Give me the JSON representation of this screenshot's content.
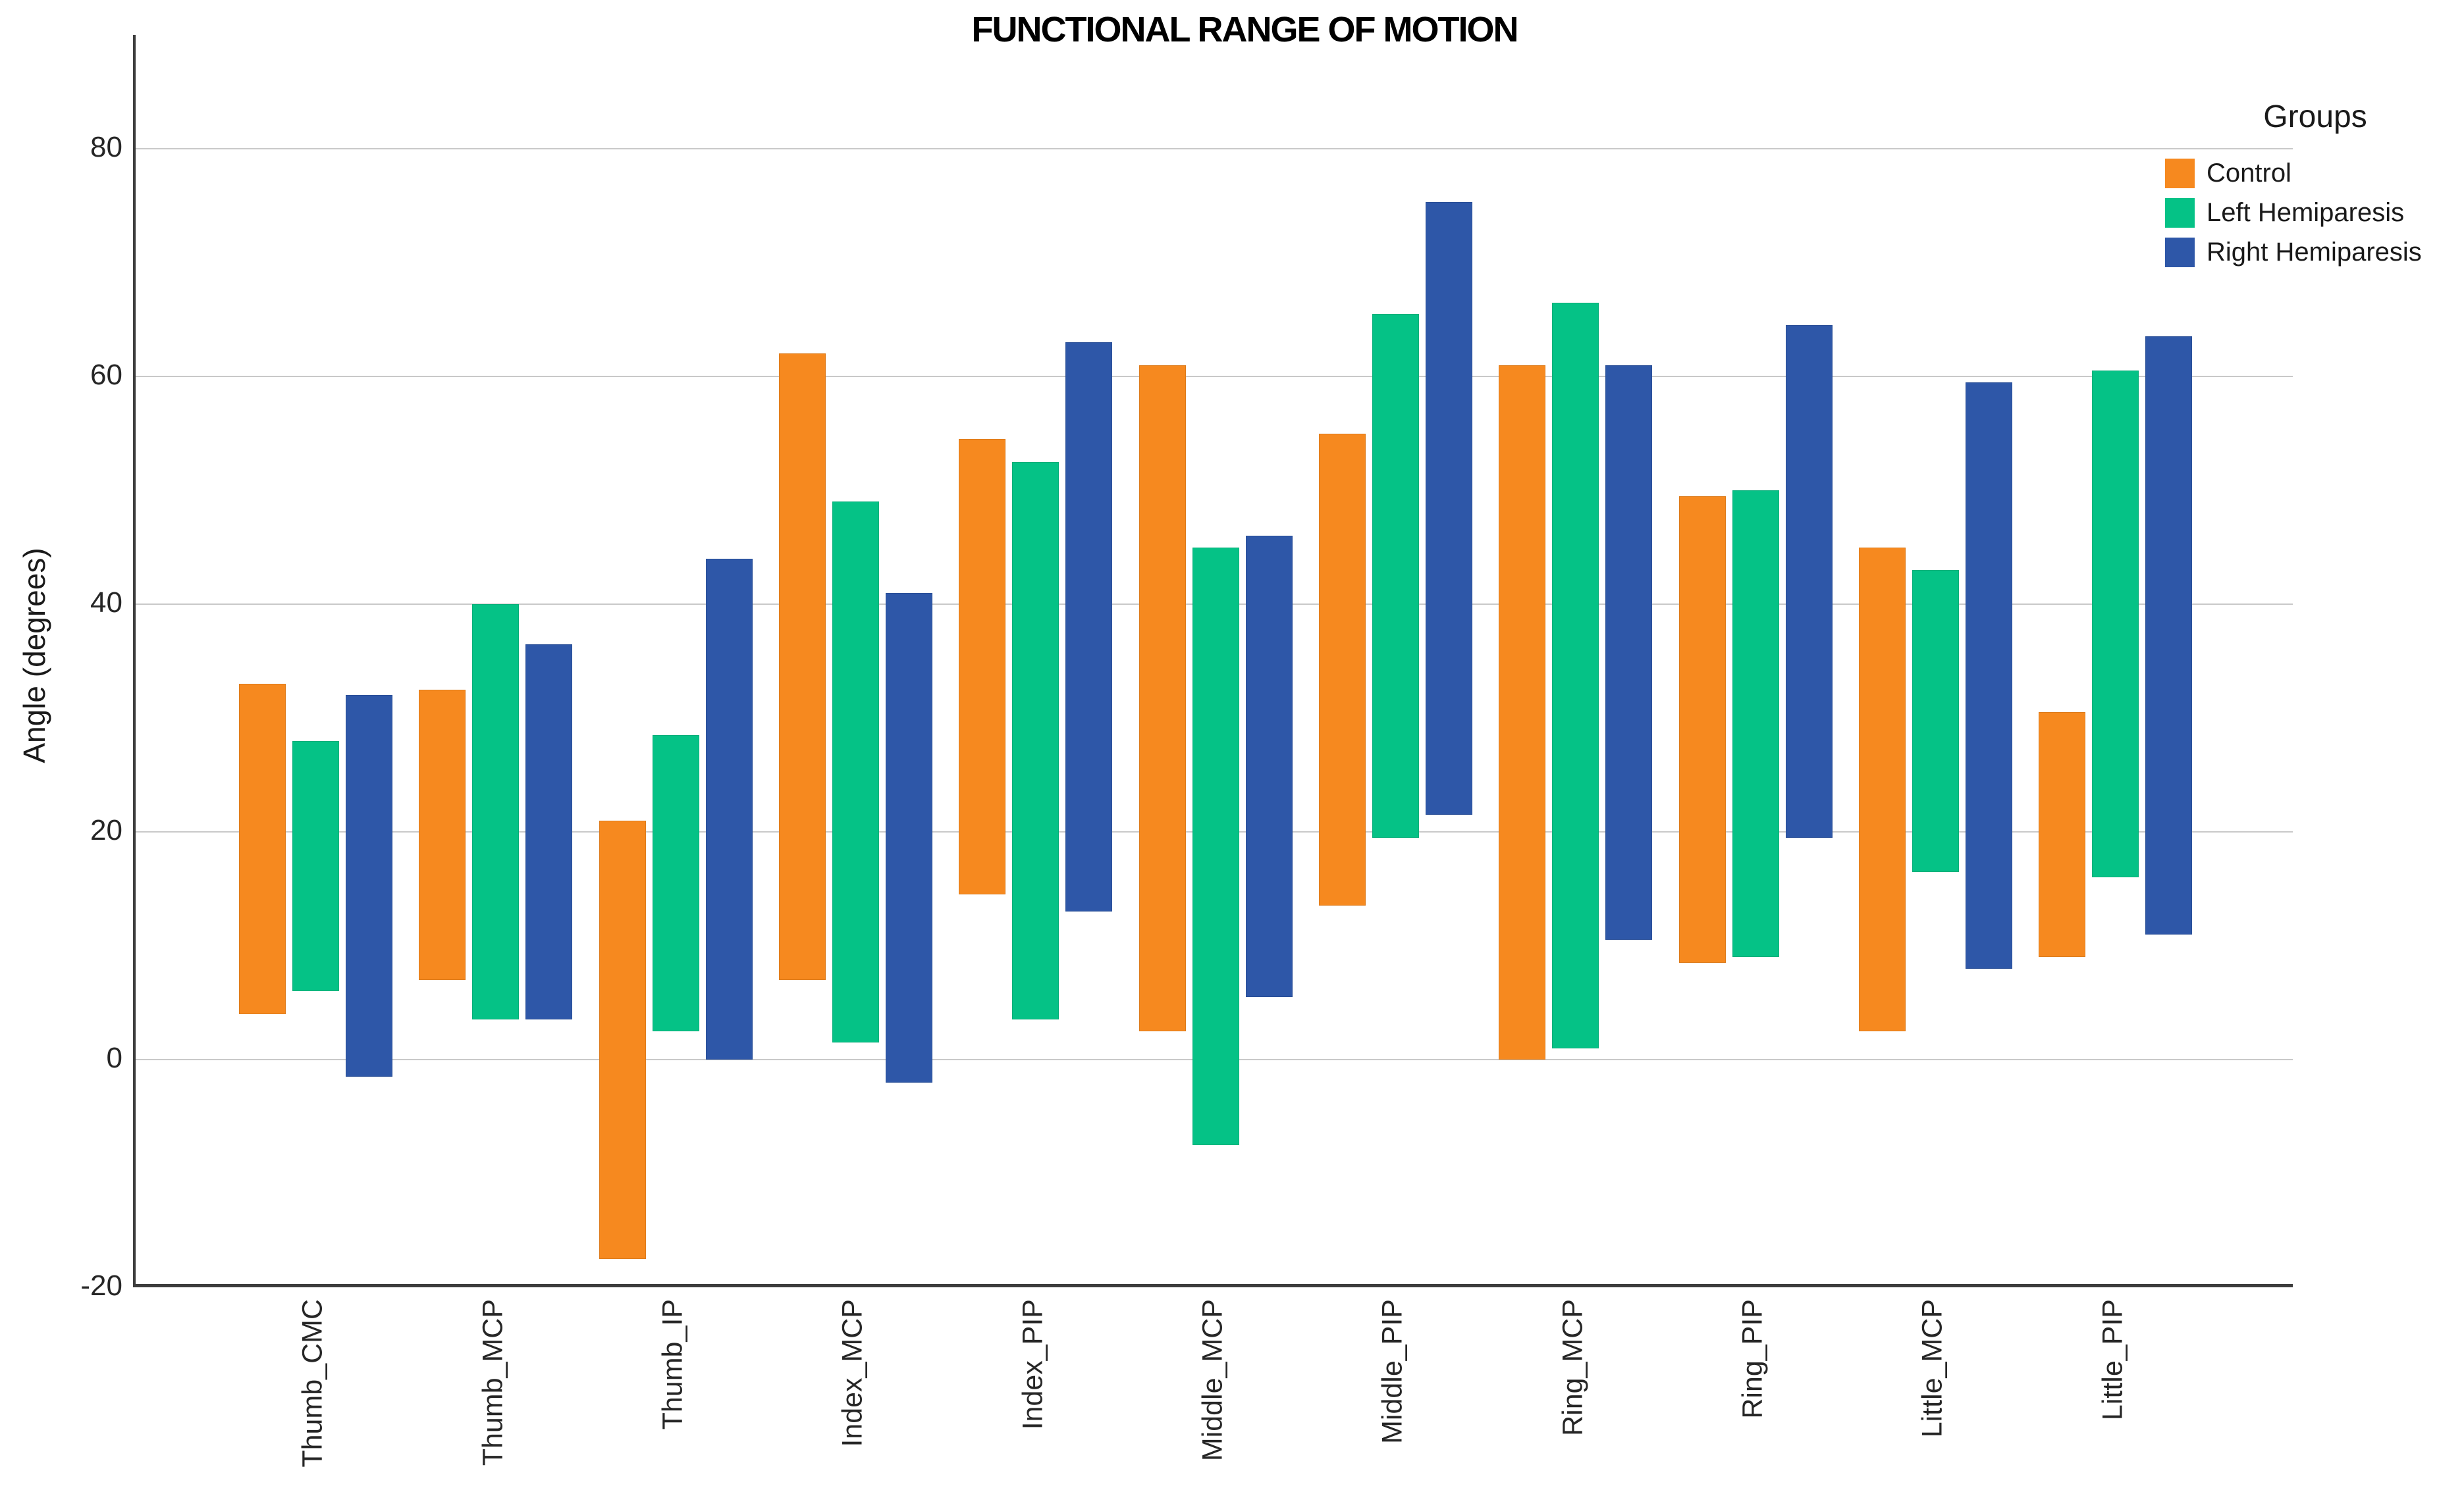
{
  "title": "FUNCTIONAL RANGE OF MOTION",
  "axes": {
    "y_label": "Angle (degrees)",
    "y_ticks": [
      80,
      60,
      40,
      20,
      0,
      -20
    ],
    "y_gridlines": [
      80,
      60,
      40,
      20,
      0
    ],
    "ylim": [
      -20,
      90
    ]
  },
  "legend": {
    "title": "Groups",
    "entries": [
      {
        "label": "Control",
        "color": "#F6891F"
      },
      {
        "label": "Left Hemiparesis",
        "color": "#05C286"
      },
      {
        "label": "Right Hemiparesis",
        "color": "#2E57A8"
      }
    ]
  },
  "colors": {
    "control": "#F6891F",
    "left_hemiparesis": "#05C286",
    "right_hemiparesis": "#2E57A8",
    "gridline": "#C9C9C9",
    "axis": "#3D3D3D",
    "text": "#1A1A1A"
  },
  "chart_data": {
    "type": "bar",
    "subtype": "floating-range-bars",
    "title": "FUNCTIONAL RANGE OF MOTION",
    "xlabel": "",
    "ylabel": "Angle (degrees)",
    "ylim": [
      -20,
      90
    ],
    "grid": true,
    "legend_position": "top-right",
    "legend_title": "Groups",
    "x_tick_rotation": 90,
    "categories": [
      "Thumb_CMC",
      "Thumb_MCP",
      "Thumb_IP",
      "Index_MCP",
      "Index_PIP",
      "Middle_MCP",
      "Middle_PIP",
      "Ring_MCP",
      "Ring_PIP",
      "Little_MCP",
      "Little_PIP"
    ],
    "series": [
      {
        "name": "Control",
        "color": "#F6891F",
        "ranges": [
          [
            4,
            33
          ],
          [
            7,
            32.5
          ],
          [
            -17.5,
            21
          ],
          [
            7,
            62
          ],
          [
            14.5,
            54.5
          ],
          [
            2.5,
            61
          ],
          [
            13.5,
            55
          ],
          [
            0,
            61
          ],
          [
            8.5,
            49.5
          ],
          [
            2.5,
            45
          ],
          [
            9,
            30.5
          ]
        ]
      },
      {
        "name": "Left Hemiparesis",
        "color": "#05C286",
        "ranges": [
          [
            6,
            28
          ],
          [
            3.5,
            40
          ],
          [
            2.5,
            28.5
          ],
          [
            1.5,
            49
          ],
          [
            3.5,
            52.5
          ],
          [
            -7.5,
            45
          ],
          [
            19.5,
            65.5
          ],
          [
            1,
            66.5
          ],
          [
            9,
            50
          ],
          [
            16.5,
            43
          ],
          [
            16,
            60.5
          ]
        ]
      },
      {
        "name": "Right Hemiparesis",
        "color": "#2E57A8",
        "ranges": [
          [
            -1.5,
            32
          ],
          [
            3.5,
            36.5
          ],
          [
            0,
            44
          ],
          [
            -2,
            41
          ],
          [
            13,
            63
          ],
          [
            5.5,
            46
          ],
          [
            21.5,
            75.3
          ],
          [
            10.5,
            61
          ],
          [
            19.5,
            64.5
          ],
          [
            8,
            59.5
          ],
          [
            11,
            63.5
          ]
        ]
      }
    ]
  }
}
